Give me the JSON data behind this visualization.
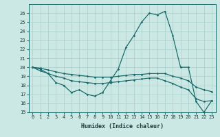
{
  "xlabel": "Humidex (Indice chaleur)",
  "background_color": "#cce8e5",
  "grid_color": "#aacfcc",
  "line_color": "#1a6b6b",
  "x_values": [
    0,
    1,
    2,
    3,
    4,
    5,
    6,
    7,
    8,
    9,
    10,
    11,
    12,
    13,
    14,
    15,
    16,
    17,
    18,
    19,
    20,
    21,
    22,
    23
  ],
  "line1": [
    20.0,
    19.8,
    19.3,
    18.3,
    18.0,
    17.2,
    17.5,
    17.0,
    16.8,
    17.2,
    18.5,
    19.8,
    22.2,
    23.5,
    25.0,
    26.0,
    25.8,
    26.2,
    23.5,
    20.0,
    20.0,
    16.2,
    15.0,
    16.3
  ],
  "line2": [
    20.0,
    19.6,
    19.3,
    19.0,
    18.8,
    18.5,
    18.4,
    18.3,
    18.2,
    18.2,
    18.3,
    18.4,
    18.5,
    18.6,
    18.7,
    18.8,
    18.8,
    18.5,
    18.2,
    17.8,
    17.5,
    16.5,
    16.2,
    16.3
  ],
  "line3": [
    20.0,
    19.9,
    19.7,
    19.5,
    19.3,
    19.2,
    19.1,
    19.0,
    18.9,
    18.9,
    18.9,
    19.0,
    19.1,
    19.2,
    19.2,
    19.3,
    19.3,
    19.3,
    19.0,
    18.8,
    18.5,
    17.8,
    17.5,
    17.3
  ],
  "ylim": [
    15,
    27
  ],
  "yticks": [
    15,
    16,
    17,
    18,
    19,
    20,
    21,
    22,
    23,
    24,
    25,
    26
  ],
  "xticks": [
    0,
    1,
    2,
    3,
    4,
    5,
    6,
    7,
    8,
    9,
    10,
    11,
    12,
    13,
    14,
    15,
    16,
    17,
    18,
    19,
    20,
    21,
    22,
    23
  ]
}
